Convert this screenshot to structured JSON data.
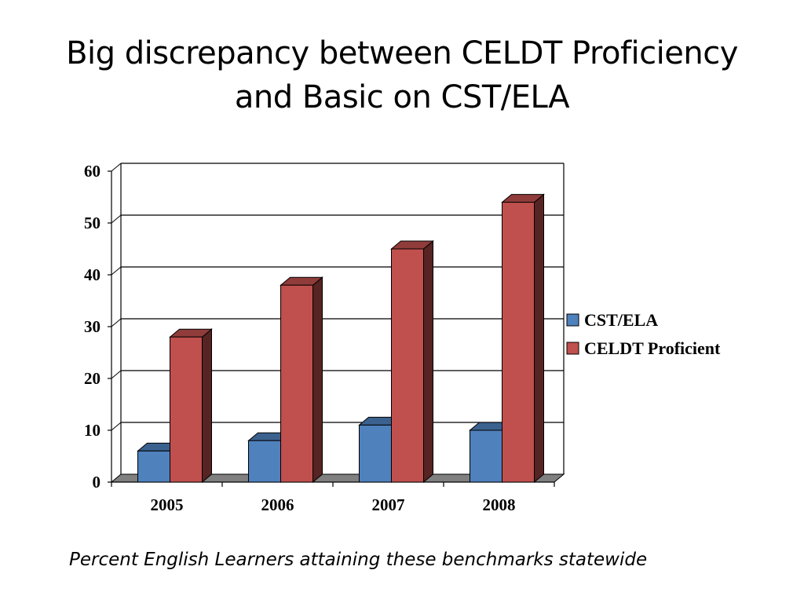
{
  "slide": {
    "title_line1": "Big discrepancy between CELDT Proficiency",
    "title_line2": "and Basic on CST/ELA",
    "caption": "Percent English Learners attaining these benchmarks statewide"
  },
  "chart_data": {
    "type": "bar",
    "style": "3d-clustered-column",
    "categories": [
      "2005",
      "2006",
      "2007",
      "2008"
    ],
    "series": [
      {
        "name": "CST/ELA",
        "values": [
          6,
          8,
          11,
          10
        ],
        "color": "#4F81BD"
      },
      {
        "name": "CELDT Proficient",
        "values": [
          28,
          38,
          45,
          54
        ],
        "color": "#C0504D"
      }
    ],
    "yticks": [
      "0",
      "10",
      "20",
      "30",
      "40",
      "50",
      "60"
    ],
    "ylim": [
      0,
      60
    ],
    "grid": true,
    "legend_position": "right",
    "title": "",
    "xlabel": "",
    "ylabel": ""
  }
}
